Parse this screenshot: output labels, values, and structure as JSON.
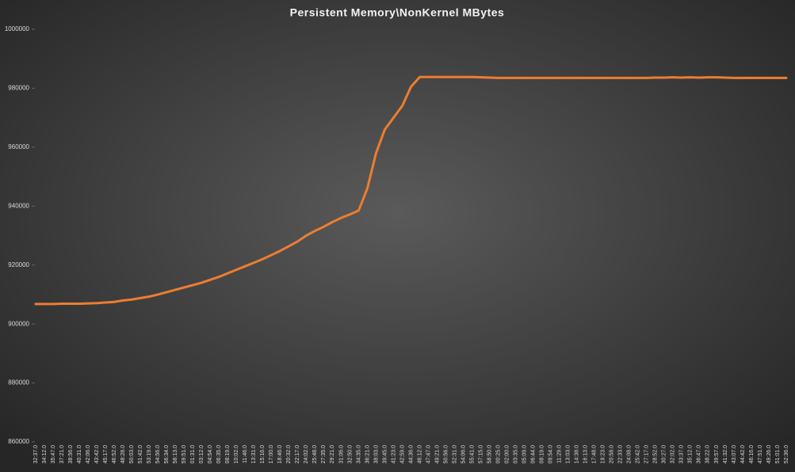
{
  "chart_data": {
    "type": "line",
    "title": "Persistent Memory\\NonKernel MBytes",
    "categories": [
      "32:37.0",
      "34:12.0",
      "35:47.0",
      "37:21.0",
      "38:56.0",
      "40:31.0",
      "42:06.0",
      "43:42.0",
      "45:17.0",
      "46:52.0",
      "48:28.0",
      "50:03.0",
      "51:42.0",
      "53:19.0",
      "54:56.0",
      "56:34.0",
      "58:13.0",
      "59:51.0",
      "01:31.0",
      "03:12.0",
      "04:54.0",
      "06:35.0",
      "08:19.0",
      "10:02.0",
      "11:46.0",
      "13:31.0",
      "15:16.0",
      "17:00.0",
      "18:46.0",
      "20:32.0",
      "22:17.0",
      "24:02.0",
      "25:48.0",
      "27:35.0",
      "29:21.0",
      "31:06.0",
      "32:50.0",
      "34:35.0",
      "36:21.0",
      "38:03.0",
      "39:45.0",
      "41:23.0",
      "42:59.0",
      "44:36.0",
      "46:12.0",
      "47:47.0",
      "49:21.0",
      "50:56.0",
      "52:31.0",
      "54:06.0",
      "55:41.0",
      "57:15.0",
      "58:50.0",
      "00:25.0",
      "02:00.0",
      "03:35.0",
      "05:09.0",
      "06:44.0",
      "08:19.0",
      "09:54.0",
      "11:29.0",
      "13:03.0",
      "14:38.0",
      "16:13.0",
      "17:48.0",
      "19:23.0",
      "20:58.0",
      "22:33.0",
      "24:08.0",
      "25:42.0",
      "27:17.0",
      "28:52.0",
      "30:27.0",
      "32:02.0",
      "33:37.0",
      "35:12.0",
      "36:47.0",
      "38:22.0",
      "39:57.0",
      "41:32.0",
      "43:07.0",
      "44:42.0",
      "46:16.0",
      "47:51.0",
      "49:26.0",
      "51:01.0",
      "52:36.0"
    ],
    "values": [
      906800,
      906800,
      906800,
      906900,
      906900,
      906900,
      907000,
      907100,
      907300,
      907500,
      908000,
      908300,
      908800,
      909300,
      910000,
      910800,
      911600,
      912400,
      913200,
      914000,
      915000,
      916000,
      917200,
      918400,
      919600,
      920800,
      922000,
      923400,
      924800,
      926400,
      928000,
      930000,
      931600,
      933000,
      934600,
      936000,
      937200,
      938500,
      946000,
      958000,
      966000,
      970000,
      974000,
      980500,
      983800,
      983800,
      983800,
      983800,
      983800,
      983800,
      983800,
      983700,
      983600,
      983500,
      983500,
      983500,
      983500,
      983500,
      983500,
      983500,
      983500,
      983500,
      983500,
      983500,
      983500,
      983500,
      983500,
      983500,
      983500,
      983500,
      983500,
      983600,
      983600,
      983700,
      983600,
      983700,
      983600,
      983700,
      983700,
      983600,
      983500,
      983500,
      983500,
      983500,
      983500,
      983500,
      983500
    ],
    "color": "#ed7d31",
    "ylim": [
      860000,
      1000000
    ],
    "yticks": [
      860000,
      880000,
      900000,
      920000,
      940000,
      960000,
      980000,
      1000000
    ],
    "grid": false
  }
}
